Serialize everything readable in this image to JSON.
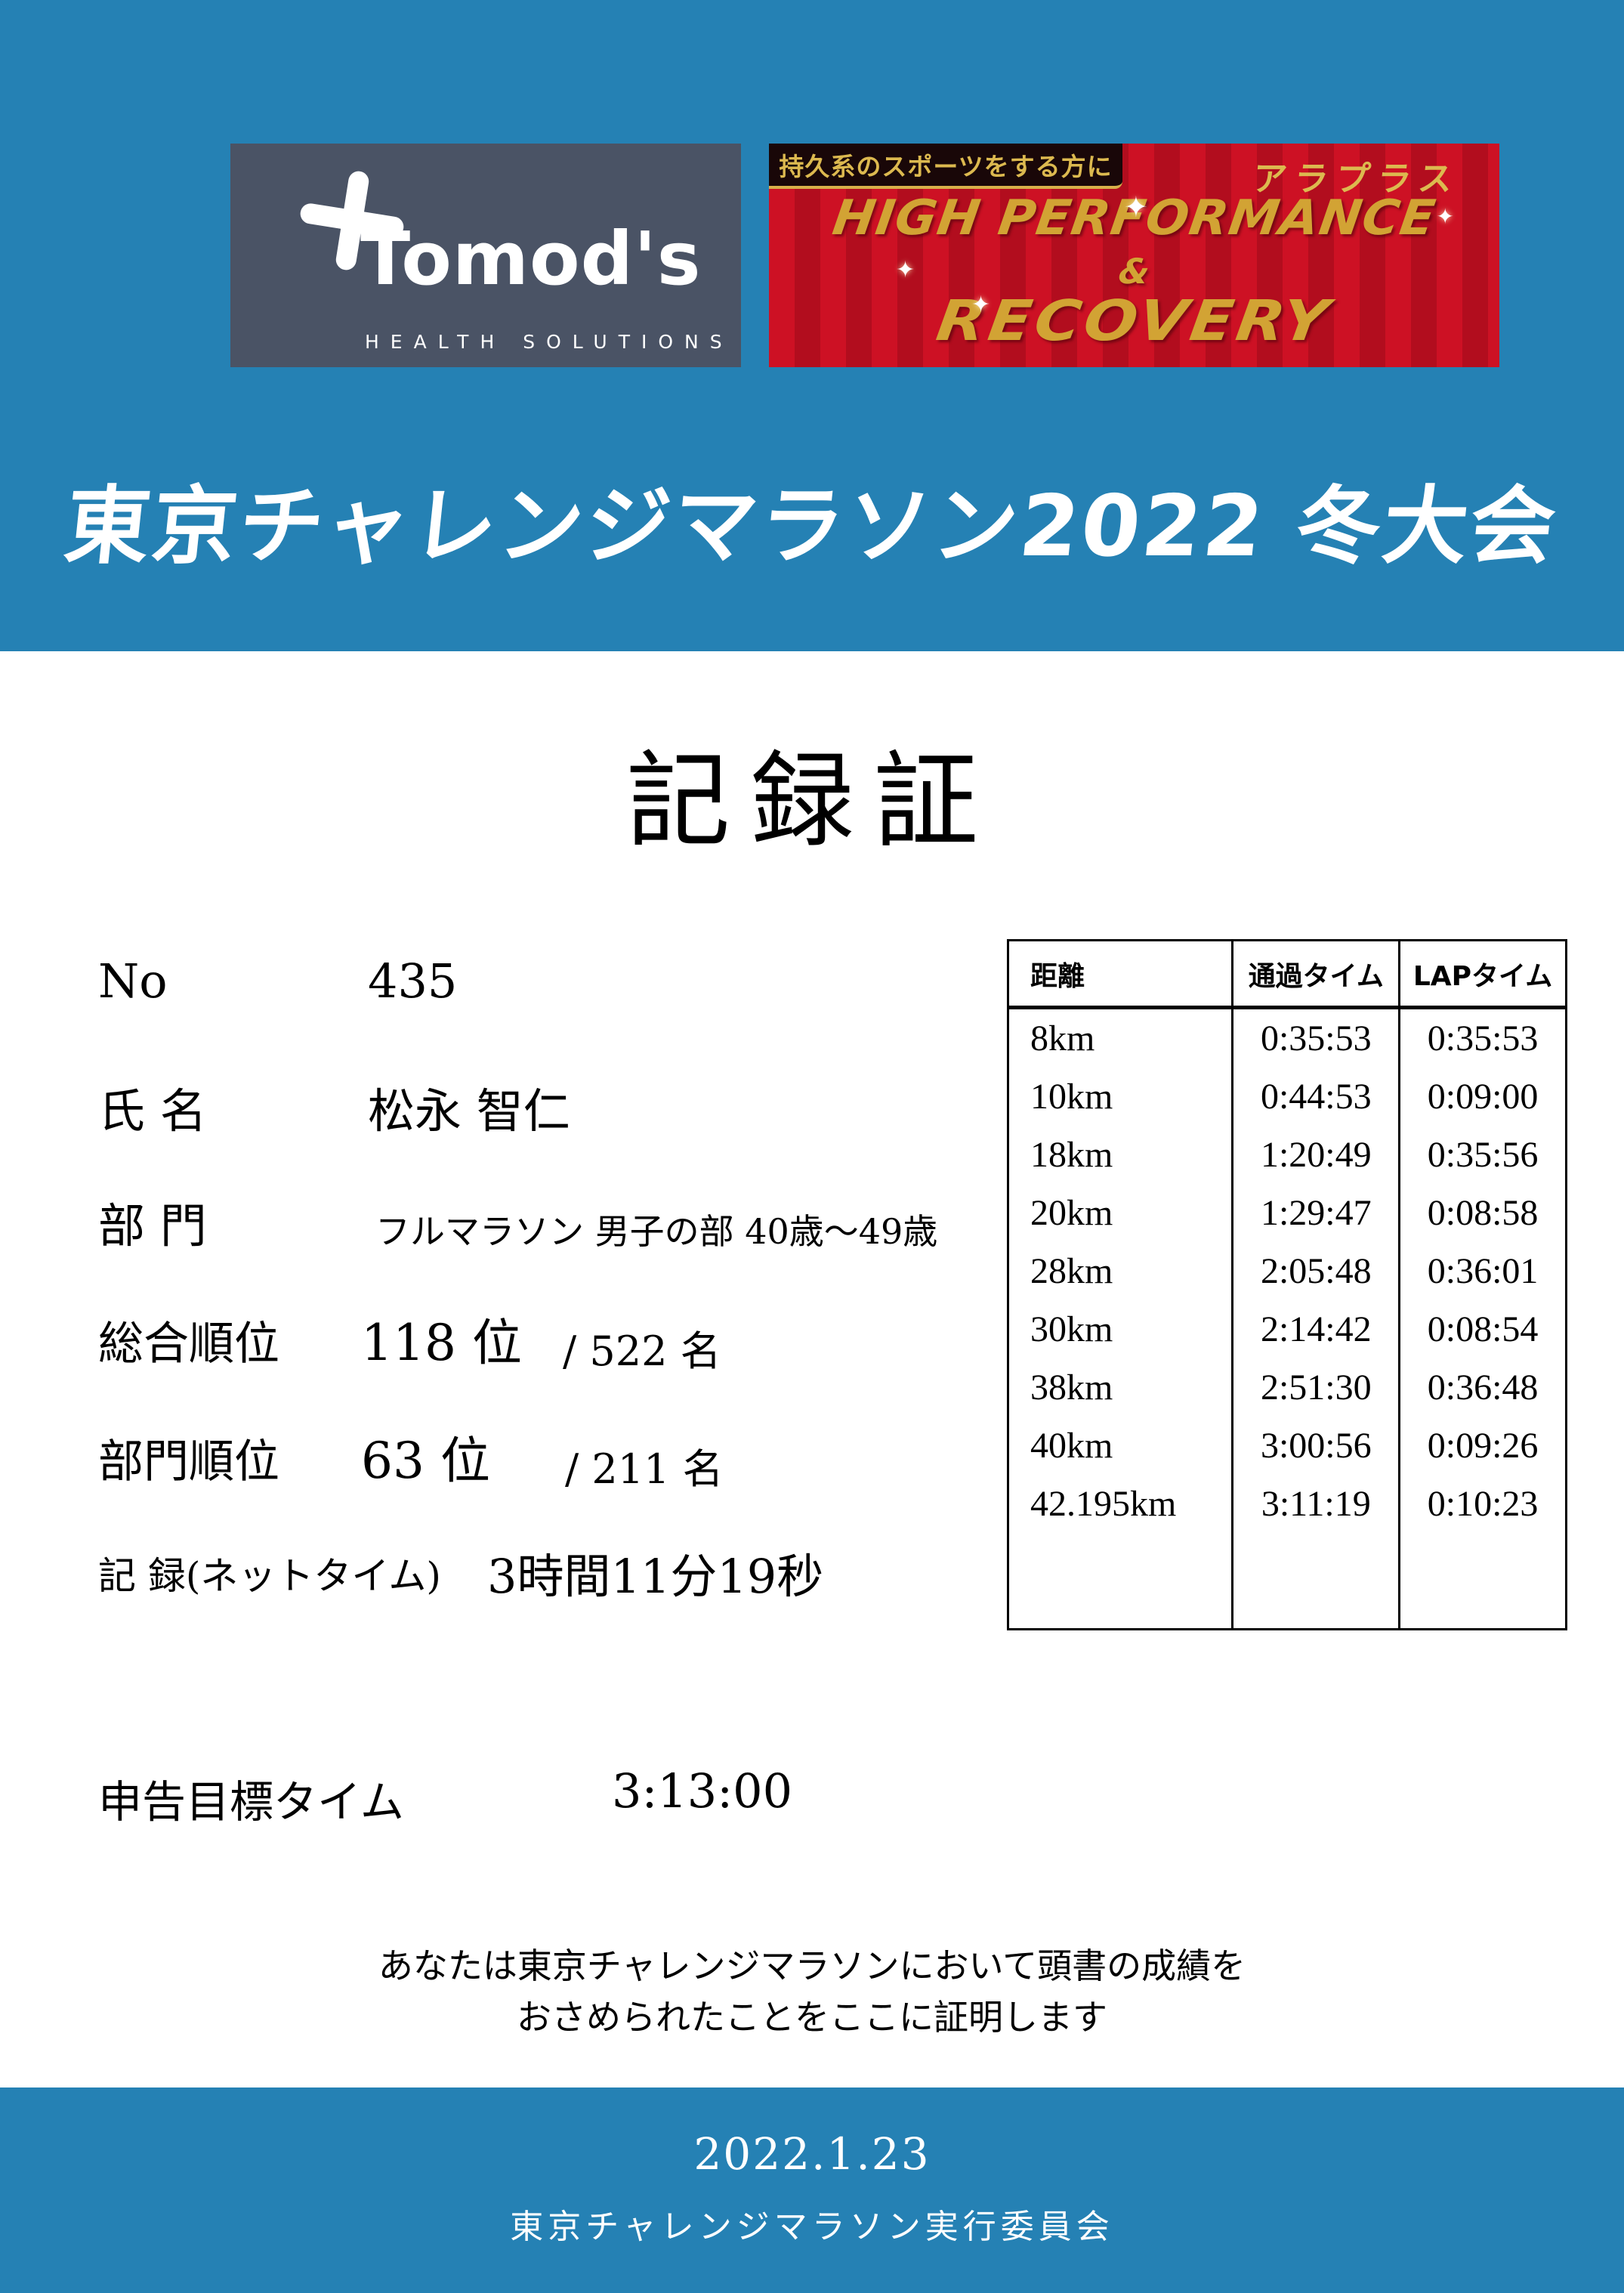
{
  "colors": {
    "band_blue": "#2581b4",
    "tomods_bg": "#4a5365",
    "araplus_red": "#cd1124",
    "araplus_stripe": "#b20d1e",
    "araplus_gold": "#d2a334",
    "tab_black": "#190708"
  },
  "header": {
    "tomods_logo": {
      "brand": "Tomod's",
      "tagline": "HEALTH SOLUTIONS"
    },
    "araplus_banner": {
      "tab_text": "持久系のスポーツをする方に",
      "brand": "アラプラス",
      "line1": "HIGH PERFORMANCE",
      "amp": "&",
      "line2": "RECOVERY",
      "sparkle": "✦"
    },
    "title": "東京チャレンジマラソン2022 冬大会"
  },
  "certificate": {
    "heading": "記録証",
    "fields": {
      "no_label": "No",
      "no_value": "435",
      "name_label": "氏 名",
      "name_value": "松永 智仁",
      "division_label": "部 門",
      "division_value": "フルマラソン 男子の部 40歳～49歳",
      "overall_rank_label": "総合順位",
      "overall_rank_value": "118 位",
      "overall_rank_total": "/ 522 名",
      "division_rank_label": "部門順位",
      "division_rank_value": "63 位",
      "division_rank_total": "/ 211 名",
      "record_label": "記 録(ネットタイム)",
      "record_value": "3時間11分19秒",
      "target_label": "申告目標タイム",
      "target_value": "3:13:00"
    },
    "statement_line1": "あなたは東京チャレンジマラソンにおいて頭書の成績を",
    "statement_line2": "おさめられたことをここに証明します"
  },
  "splits_table": {
    "headers": [
      "距離",
      "通過タイム",
      "LAPタイム"
    ],
    "rows": [
      [
        "8km",
        "0:35:53",
        "0:35:53"
      ],
      [
        "10km",
        "0:44:53",
        "0:09:00"
      ],
      [
        "18km",
        "1:20:49",
        "0:35:56"
      ],
      [
        "20km",
        "1:29:47",
        "0:08:58"
      ],
      [
        "28km",
        "2:05:48",
        "0:36:01"
      ],
      [
        "30km",
        "2:14:42",
        "0:08:54"
      ],
      [
        "38km",
        "2:51:30",
        "0:36:48"
      ],
      [
        "40km",
        "3:00:56",
        "0:09:26"
      ],
      [
        "42.195km",
        "3:11:19",
        "0:10:23"
      ]
    ]
  },
  "footer": {
    "date": "2022.1.23",
    "organizer": "東京チャレンジマラソン実行委員会"
  }
}
